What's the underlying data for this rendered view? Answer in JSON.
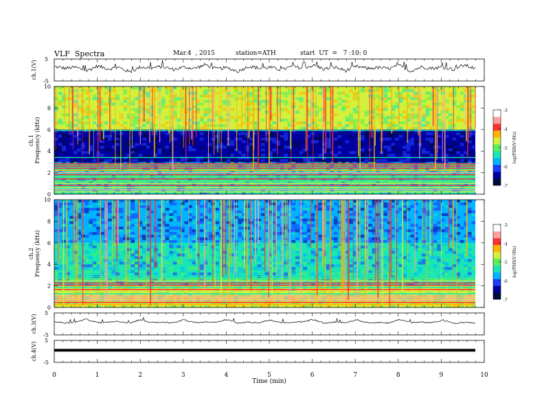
{
  "header": {
    "title": "VLF  Spectra",
    "date": "Mar.4  , 2015",
    "station": "station=ATH",
    "start": "start  UT  =   7 :10: 0"
  },
  "colors": {
    "colormap": [
      "#000a3c",
      "#0000a0",
      "#1e3cff",
      "#00b4ff",
      "#19e6b4",
      "#5af05a",
      "#d2f03c",
      "#ffb400",
      "#ff3232",
      "#ffa0a0",
      "#ffffff"
    ]
  },
  "chart_data": [
    {
      "type": "line",
      "ylabel": "ch.1(V)",
      "ylim": [
        -5,
        5
      ],
      "yticks": [
        "5",
        "-5"
      ],
      "series": [
        {
          "values": [
            1.5,
            0.8,
            1.2,
            -0.4,
            1.8,
            0.6,
            1.1,
            -0.9,
            1.4,
            0.9,
            1.6,
            0.2,
            1.3,
            0.7,
            2.4,
            0.5,
            1.0,
            -0.6,
            1.7,
            0.8,
            1.2,
            0.1,
            1.5,
            0.9,
            2.1,
            0.4,
            1.3,
            -0.3,
            1.6,
            0.7,
            1.1,
            0.6,
            1.9,
            -0.5,
            1.4,
            0.8,
            1.2,
            0.3,
            2.3,
            0.6
          ]
        }
      ]
    },
    {
      "type": "heatmap",
      "ylabel": "Frequency  (kHz)",
      "channel_label": "ch.1",
      "ylim": [
        0,
        10
      ],
      "yticks": [
        "0",
        "2",
        "4",
        "6",
        "8",
        "10"
      ],
      "colorbar": {
        "label": "log(PSD(V²/Hz)",
        "range": [
          -7,
          -3
        ],
        "ticks": [
          "-3",
          "-4",
          "-5",
          "-6",
          "-7"
        ]
      },
      "bands": [
        {
          "from": 0,
          "to": 2.9,
          "level": -5.6
        },
        {
          "from": 2.9,
          "to": 6.0,
          "level": -6.6
        },
        {
          "from": 6.0,
          "to": 10,
          "level": -4.8
        }
      ]
    },
    {
      "type": "heatmap",
      "ylabel": "Frequency  (kHz)",
      "channel_label": "ch.2",
      "ylim": [
        0,
        10
      ],
      "yticks": [
        "0",
        "2",
        "4",
        "6",
        "8",
        "10"
      ],
      "colorbar": {
        "label": "log(PSD(V²/Hz)",
        "range": [
          -7,
          -3
        ],
        "ticks": [
          "-3",
          "-4",
          "-5",
          "-6",
          "-7"
        ]
      },
      "bands": [
        {
          "from": 0,
          "to": 2.0,
          "level": -4.7
        },
        {
          "from": 2.0,
          "to": 6.0,
          "level": -5.6
        },
        {
          "from": 6.0,
          "to": 10,
          "level": -6.0
        }
      ]
    },
    {
      "type": "line",
      "ylabel": "ch.3(V)",
      "ylim": [
        -5,
        5
      ],
      "yticks": [
        "5",
        "-5"
      ],
      "series": [
        {
          "values": [
            1.0,
            0.4,
            0.9,
            2.2,
            0.5,
            0.7,
            1.1,
            0.3,
            2.0,
            0.6,
            0.8,
            0.4,
            1.9,
            0.5,
            0.9,
            0.7,
            2.1,
            0.4,
            0.8,
            0.6,
            1.8,
            0.5,
            0.7,
            0.9,
            2.0,
            0.3,
            0.8,
            0.6,
            1.9,
            0.5,
            0.7,
            0.4,
            2.1,
            0.6,
            0.8,
            0.5,
            1.7,
            0.4,
            0.6,
            0.5
          ]
        }
      ]
    },
    {
      "type": "line",
      "ylabel": "ch.4(V)",
      "ylim": [
        -5,
        5
      ],
      "yticks": [
        "5",
        "-5"
      ],
      "series": [
        {
          "values": [
            0.5,
            0.5,
            0.5,
            0.5,
            0.5,
            0.5,
            0.5,
            0.5,
            0.5,
            0.5
          ]
        }
      ]
    }
  ],
  "xaxis": {
    "label": "Time  (min)",
    "range": [
      0,
      10
    ],
    "ticks": [
      "0",
      "1",
      "2",
      "3",
      "4",
      "5",
      "6",
      "7",
      "8",
      "9",
      "10"
    ]
  }
}
